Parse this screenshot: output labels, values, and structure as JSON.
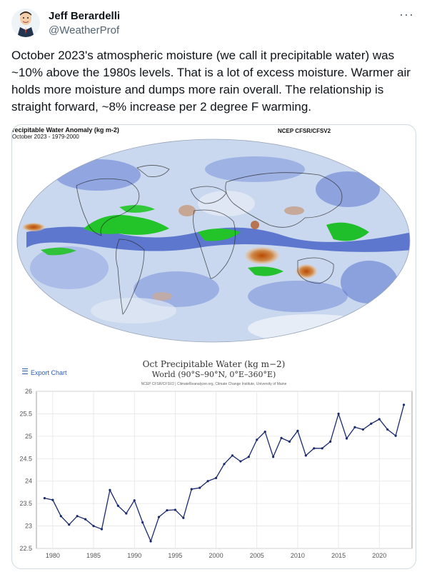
{
  "author": {
    "name": "Jeff Berardelli",
    "handle": "@WeatherProf",
    "avatar_icon": "cartoon-avatar-icon"
  },
  "menu_label": "···",
  "tweet": {
    "text": "October 2023's atmospheric moisture (we call it precipitable water) was ~10% above the 1980s levels. That is a lot of excess moisture. Warmer air holds more moisture and dumps more rain overall. The relationship is straight forward, ~8% increase per 2 degree F warming."
  },
  "map": {
    "title": "recipitable Water Anomaly (kg m-2)",
    "subtitle": "October 2023 - 1979-2000",
    "source": "NCEP CFSR/CFSV2"
  },
  "chart_ui": {
    "export_label": "Export Chart",
    "menu_icon": "hamburger-icon",
    "credit": "NCEP CFSR/CFSV2 | ClimateReanalyzer.org, Climate Change Institute, University of Maine"
  },
  "chart_data": {
    "type": "line",
    "title": "Oct Precipitable Water (kg m−2)",
    "subtitle": "World (90°S–90°N, 0°E–360°E)",
    "xlabel": "",
    "ylabel": "",
    "xlim": [
      1978,
      2024
    ],
    "ylim": [
      22.5,
      26
    ],
    "yticks": [
      22.5,
      23,
      23.5,
      24,
      24.5,
      25,
      25.5,
      26
    ],
    "xticks": [
      1980,
      1985,
      1990,
      1995,
      2000,
      2005,
      2010,
      2015,
      2020
    ],
    "grid": true,
    "series_color": "#1a2a6c",
    "x": [
      1979,
      1980,
      1981,
      1982,
      1983,
      1984,
      1985,
      1986,
      1987,
      1988,
      1989,
      1990,
      1991,
      1992,
      1993,
      1994,
      1995,
      1996,
      1997,
      1998,
      1999,
      2000,
      2001,
      2002,
      2003,
      2004,
      2005,
      2006,
      2007,
      2008,
      2009,
      2010,
      2011,
      2012,
      2013,
      2014,
      2015,
      2016,
      2017,
      2018,
      2019,
      2020,
      2021,
      2022,
      2023
    ],
    "values": [
      23.62,
      23.58,
      23.22,
      23.03,
      23.22,
      23.15,
      23.0,
      22.93,
      23.8,
      23.45,
      23.28,
      23.57,
      23.08,
      22.66,
      23.2,
      23.35,
      23.36,
      23.18,
      23.82,
      23.85,
      24.0,
      24.07,
      24.38,
      24.57,
      24.44,
      24.54,
      24.92,
      25.1,
      24.54,
      24.96,
      24.88,
      25.12,
      24.57,
      24.73,
      24.73,
      24.88,
      25.5,
      24.95,
      25.2,
      25.15,
      25.28,
      25.38,
      25.15,
      25.01,
      25.7
    ]
  }
}
